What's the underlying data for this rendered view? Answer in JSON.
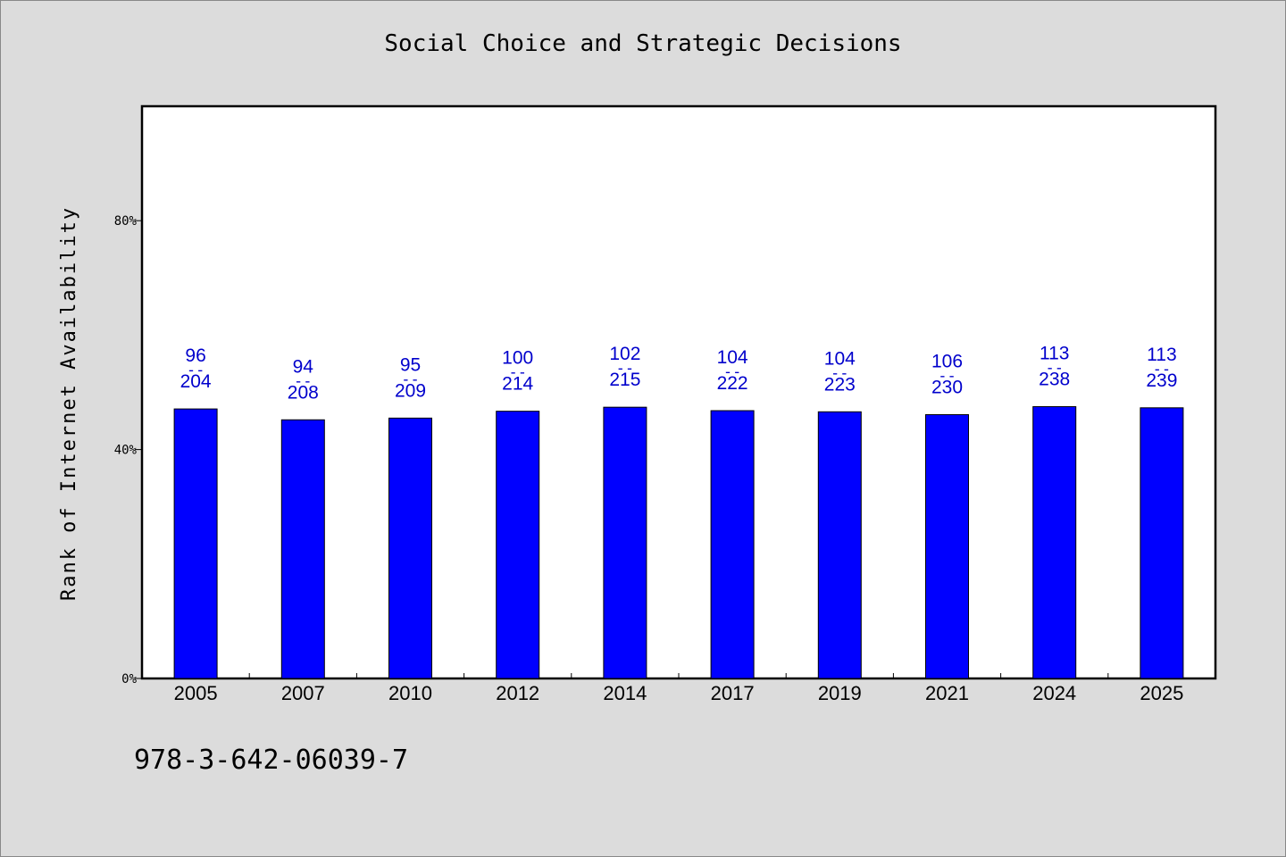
{
  "chart_data": {
    "type": "bar",
    "title": "Social Choice and Strategic Decisions",
    "ylabel": "Rank of Internet Availability",
    "xlabel": "",
    "ylim": [
      0,
      100
    ],
    "yticks": [
      {
        "value": 0,
        "label": "0%"
      },
      {
        "value": 40,
        "label": "40%"
      },
      {
        "value": 80,
        "label": "80%"
      }
    ],
    "categories": [
      "2005",
      "2007",
      "2010",
      "2012",
      "2014",
      "2017",
      "2019",
      "2021",
      "2024",
      "2025"
    ],
    "values": [
      47.1,
      45.2,
      45.5,
      46.7,
      47.4,
      46.8,
      46.6,
      46.1,
      47.5,
      47.3
    ],
    "numerators": [
      "96",
      "94",
      "95",
      "100",
      "102",
      "104",
      "104",
      "106",
      "113",
      "113"
    ],
    "denominators": [
      "204",
      "208",
      "209",
      "214",
      "215",
      "222",
      "223",
      "230",
      "238",
      "239"
    ],
    "fraction_separator": "--",
    "grid": false,
    "legend": "none",
    "bar_color": "#0000ff",
    "label_color": "#0000cc"
  },
  "footer": {
    "isbn": "978-3-642-06039-7"
  }
}
